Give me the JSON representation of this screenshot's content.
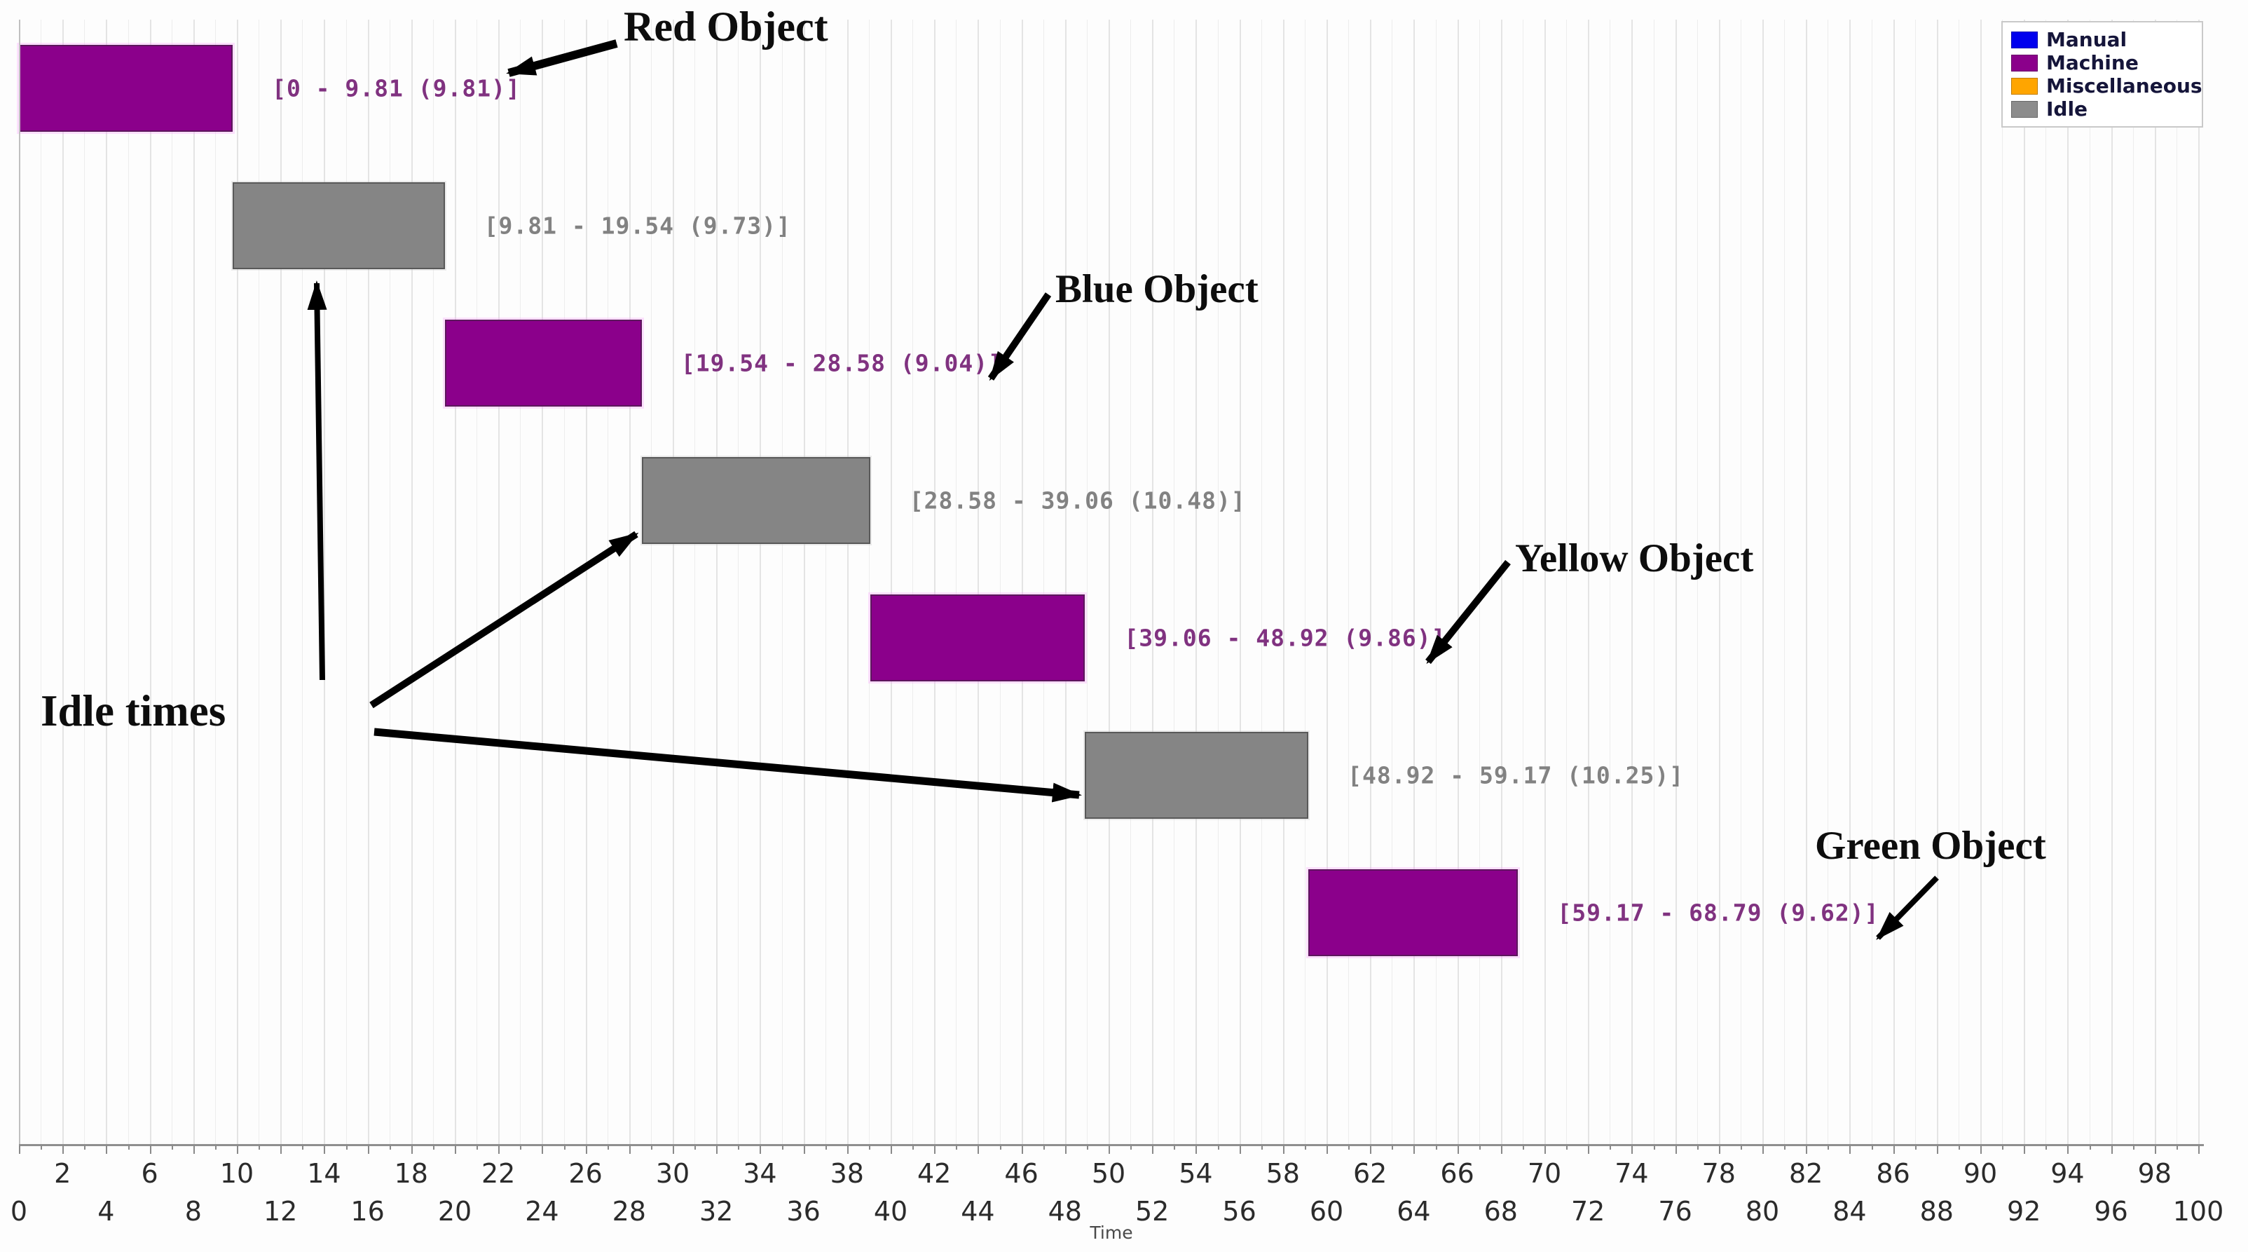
{
  "figure": {
    "annotations": {
      "red": "Red Object",
      "blue": "Blue Object",
      "yellow": "Yellow Object",
      "green": "Green Object",
      "idle": "Idle times"
    },
    "xlabel": "Time"
  },
  "legend": {
    "items": [
      {
        "label": "Manual",
        "color": "#0000EE"
      },
      {
        "label": "Machine",
        "color": "#8B008B"
      },
      {
        "label": "Miscellaneous",
        "color": "#FFA500"
      },
      {
        "label": "Idle",
        "color": "#8C8C8C"
      }
    ]
  },
  "chart_data": {
    "type": "bar",
    "subtype": "gantt-timeline",
    "title": "",
    "xlabel": "Time",
    "ylabel": "",
    "xlim": [
      0,
      100
    ],
    "tick_step": 2,
    "tick_label_rows": "staggered (multiples of 4 bottom row, 4k+2 top row)",
    "grid": true,
    "legend_position": "top-right",
    "legend_entries": [
      "Manual",
      "Machine",
      "Miscellaneous",
      "Idle"
    ],
    "colors": {
      "Manual": "#0000EE",
      "Machine": "#8B008B",
      "Miscellaneous": "#FFA500",
      "Idle": "#858585"
    },
    "bars": [
      {
        "row": 1,
        "category": "Machine",
        "start": 0,
        "end": 9.81,
        "duration": 9.81,
        "label": "[0 - 9.81 (9.81)]"
      },
      {
        "row": 2,
        "category": "Idle",
        "start": 9.81,
        "end": 19.54,
        "duration": 9.73,
        "label": "[9.81 - 19.54 (9.73)]"
      },
      {
        "row": 3,
        "category": "Machine",
        "start": 19.54,
        "end": 28.58,
        "duration": 9.04,
        "label": "[19.54 - 28.58 (9.04)]"
      },
      {
        "row": 4,
        "category": "Idle",
        "start": 28.58,
        "end": 39.06,
        "duration": 10.48,
        "label": "[28.58 - 39.06 (10.48)]"
      },
      {
        "row": 5,
        "category": "Machine",
        "start": 39.06,
        "end": 48.92,
        "duration": 9.86,
        "label": "[39.06 - 48.92 (9.86)]"
      },
      {
        "row": 6,
        "category": "Idle",
        "start": 48.92,
        "end": 59.17,
        "duration": 10.25,
        "label": "[48.92 - 59.17 (10.25)]"
      },
      {
        "row": 7,
        "category": "Machine",
        "start": 59.17,
        "end": 68.79,
        "duration": 9.62,
        "label": "[59.17 - 68.79 (9.62)]"
      }
    ],
    "annotations": [
      {
        "text": "Red Object",
        "points_to": "Machine bar 1 label"
      },
      {
        "text": "Blue Object",
        "points_to": "Machine bar 2 label"
      },
      {
        "text": "Yellow Object",
        "points_to": "Machine bar 3 label"
      },
      {
        "text": "Green Object",
        "points_to": "Machine bar 4 label"
      },
      {
        "text": "Idle times",
        "points_to": "the three gray Idle bars"
      }
    ]
  }
}
